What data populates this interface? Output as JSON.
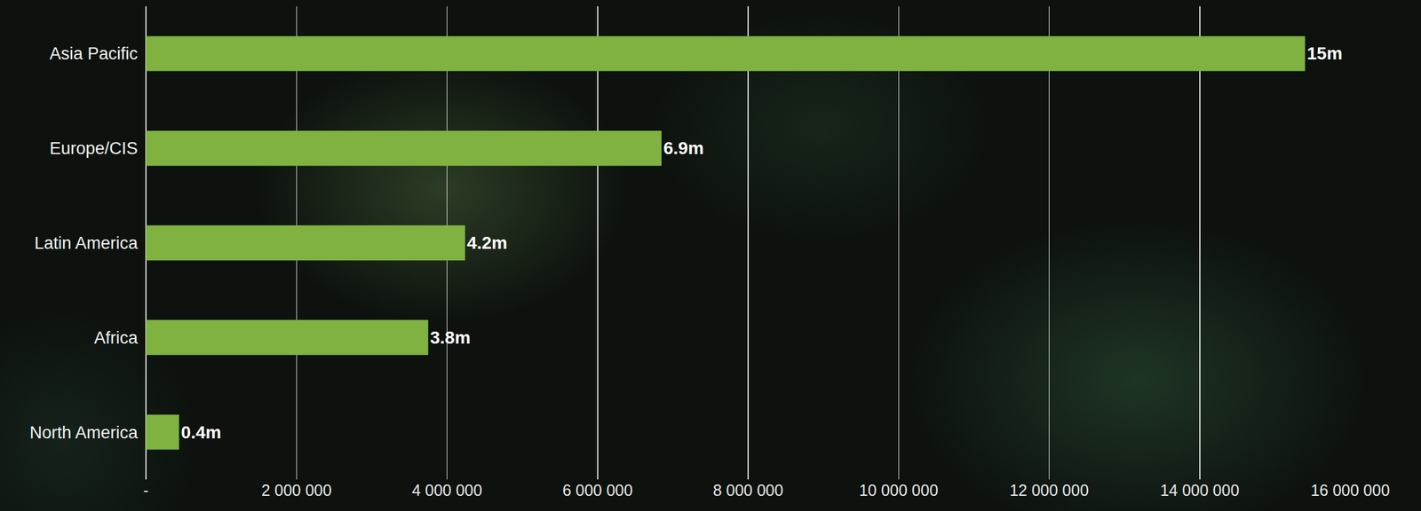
{
  "chart_data": {
    "type": "bar",
    "orientation": "horizontal",
    "categories": [
      "Asia Pacific",
      "Europe/CIS",
      "Latin America",
      "Africa",
      "North America"
    ],
    "values": [
      15400000,
      6850000,
      4240000,
      3750000,
      440000
    ],
    "value_labels": [
      "15m",
      "6.9m",
      "4.2m",
      "3.8m",
      "0.4m"
    ],
    "data_labels": true,
    "color": "#7fb241",
    "xlim": [
      0,
      16000000
    ],
    "xticks": [
      {
        "value": 0,
        "label": "-"
      },
      {
        "value": 2000000,
        "label": "2 000 000"
      },
      {
        "value": 4000000,
        "label": "4 000 000"
      },
      {
        "value": 6000000,
        "label": "6 000 000"
      },
      {
        "value": 8000000,
        "label": "8 000 000"
      },
      {
        "value": 10000000,
        "label": "10 000 000"
      },
      {
        "value": 12000000,
        "label": "12 000 000"
      },
      {
        "value": 14000000,
        "label": "14 000 000"
      },
      {
        "value": 16000000,
        "label": "16 000 000"
      }
    ],
    "grid": true
  }
}
